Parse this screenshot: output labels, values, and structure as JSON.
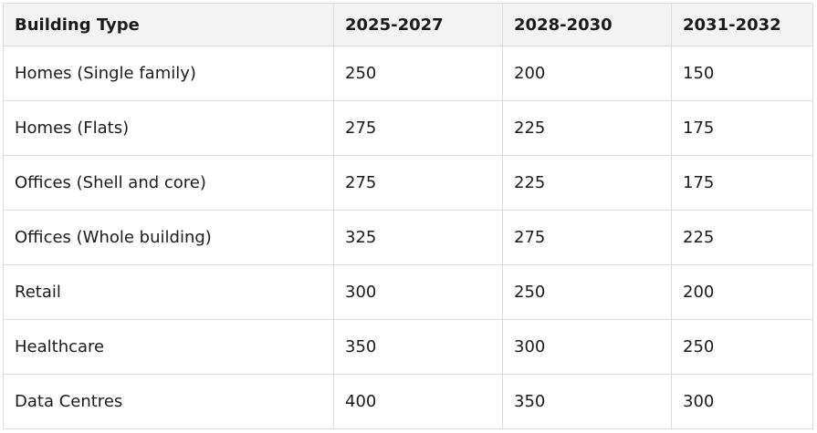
{
  "table": {
    "header": [
      "Building Type",
      "2025-2027",
      "2028-2030",
      "2031-2032"
    ],
    "rows": [
      [
        "Homes (Single family)",
        250,
        200,
        150
      ],
      [
        "Homes (Flats)",
        275,
        225,
        175
      ],
      [
        "Offices (Shell and core)",
        275,
        225,
        175
      ],
      [
        "Offices (Whole building)",
        325,
        275,
        225
      ],
      [
        "Retail",
        300,
        250,
        200
      ],
      [
        "Healthcare",
        350,
        300,
        250
      ],
      [
        "Data Centres",
        400,
        350,
        300
      ]
    ]
  }
}
